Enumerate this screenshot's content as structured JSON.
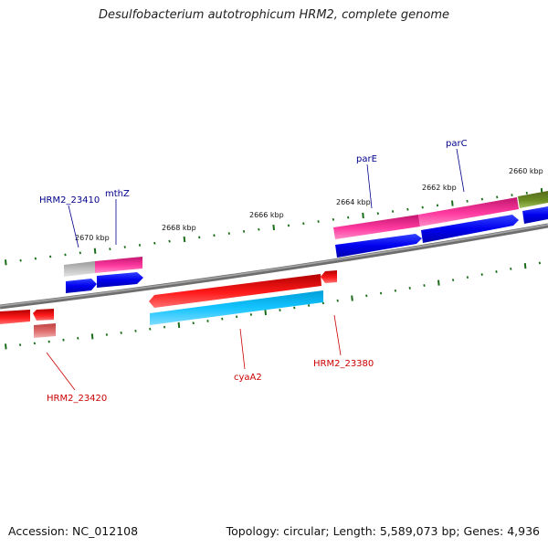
{
  "title": "Desulfobacterium autotrophicum HRM2, complete genome",
  "footer": {
    "accession": "Accession: NC_012108",
    "topology": "Topology: circular; Length: 5,589,073 bp; Genes: 4,936"
  },
  "tick_labels": [
    "2670 kbp",
    "2668 kbp",
    "2666 kbp",
    "2664 kbp",
    "2662 kbp",
    "2660 kbp"
  ],
  "gene_labels": {
    "hrm2_23410": "HRM2_23410",
    "mthz": "mthZ",
    "pare": "parE",
    "parc": "parC",
    "cyaa2": "cyaA2",
    "hrm2_23380": "HRM2_23380",
    "hrm2_23420": "HRM2_23420"
  },
  "colors": {
    "backbone": "#808080",
    "tick": "#1a6e1a",
    "label_forward": "#00008b",
    "label_reverse": "#cc0000",
    "cds_blue": "#0000ee",
    "gene_pink": "#e8208e",
    "gene_red": "#ee0000",
    "cds_cyan": "#00b4f0",
    "gene_olive": "#6b8e23",
    "gene_gray": "#b8b8b8",
    "gene_lightred": "#e07070"
  }
}
